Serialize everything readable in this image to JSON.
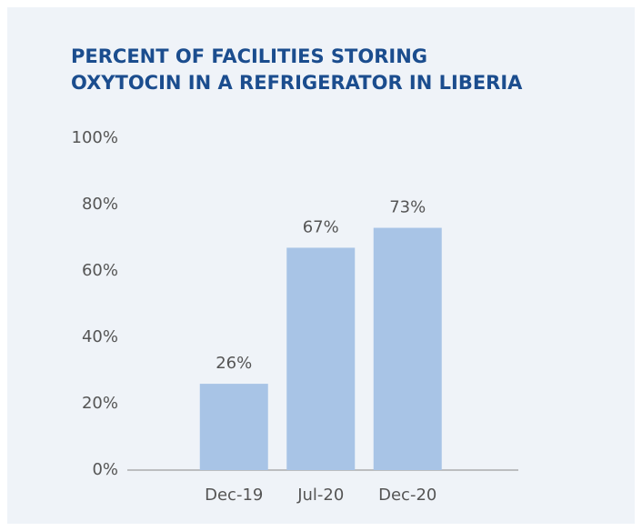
{
  "chart_data": {
    "type": "bar",
    "title": [
      "PERCENT OF FACILITIES STORING",
      "OXYTOCIN IN A REFRIGERATOR IN LIBERIA"
    ],
    "categories": [
      "Dec-19",
      "Jul-20",
      "Dec-20"
    ],
    "values": [
      26,
      67,
      73
    ],
    "value_labels": [
      "26%",
      "67%",
      "73%"
    ],
    "color": "#a8c4e6",
    "ylim": [
      0,
      100
    ],
    "yticks": [
      {
        "value": 0,
        "label": "0%"
      },
      {
        "value": 20,
        "label": "20%"
      },
      {
        "value": 40,
        "label": "40%"
      },
      {
        "value": 60,
        "label": "60%"
      },
      {
        "value": 80,
        "label": "80%"
      },
      {
        "value": 100,
        "label": "100%"
      }
    ],
    "grid": false
  }
}
